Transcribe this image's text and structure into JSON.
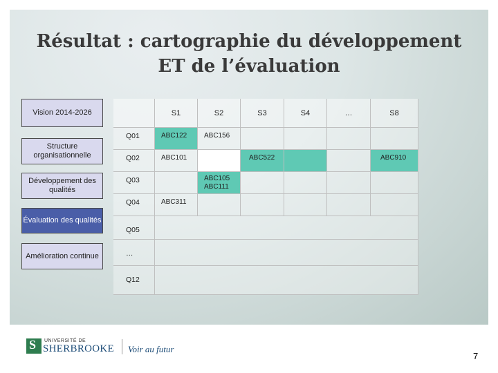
{
  "title": "Résultat : cartographie du développement ET de l’évaluation",
  "sidebar": [
    "Vision 2014-2026",
    "Structure organisationnelle",
    "Développement des qualités",
    "Évaluation des qualités",
    "Amélioration continue"
  ],
  "table": {
    "columns": [
      "S1",
      "S2",
      "S3",
      "S4",
      "…",
      "S8"
    ],
    "rows": [
      "Q01",
      "Q02",
      "Q03",
      "Q04",
      "Q05",
      "…",
      "Q12"
    ],
    "cells": {
      "q01_s1": "ABC122",
      "q01_s2": "ABC156",
      "q02_s1": "ABC101",
      "q02_s3": "ABC522",
      "q02_s8": "ABC910",
      "q03_s2_line1": "ABC105",
      "q03_s2_line2": "ABC111",
      "q04_s1": "ABC311"
    }
  },
  "footer": {
    "university_line1": "UNIVERSITÉ DE",
    "university_line2": "SHERBROOKE",
    "tagline": "Voir au futur",
    "page_number": "7"
  },
  "colors": {
    "highlight_teal": "#5fc9b4",
    "sidebar_light": "#d9d9ee",
    "sidebar_selected": "#4a5ea8"
  }
}
